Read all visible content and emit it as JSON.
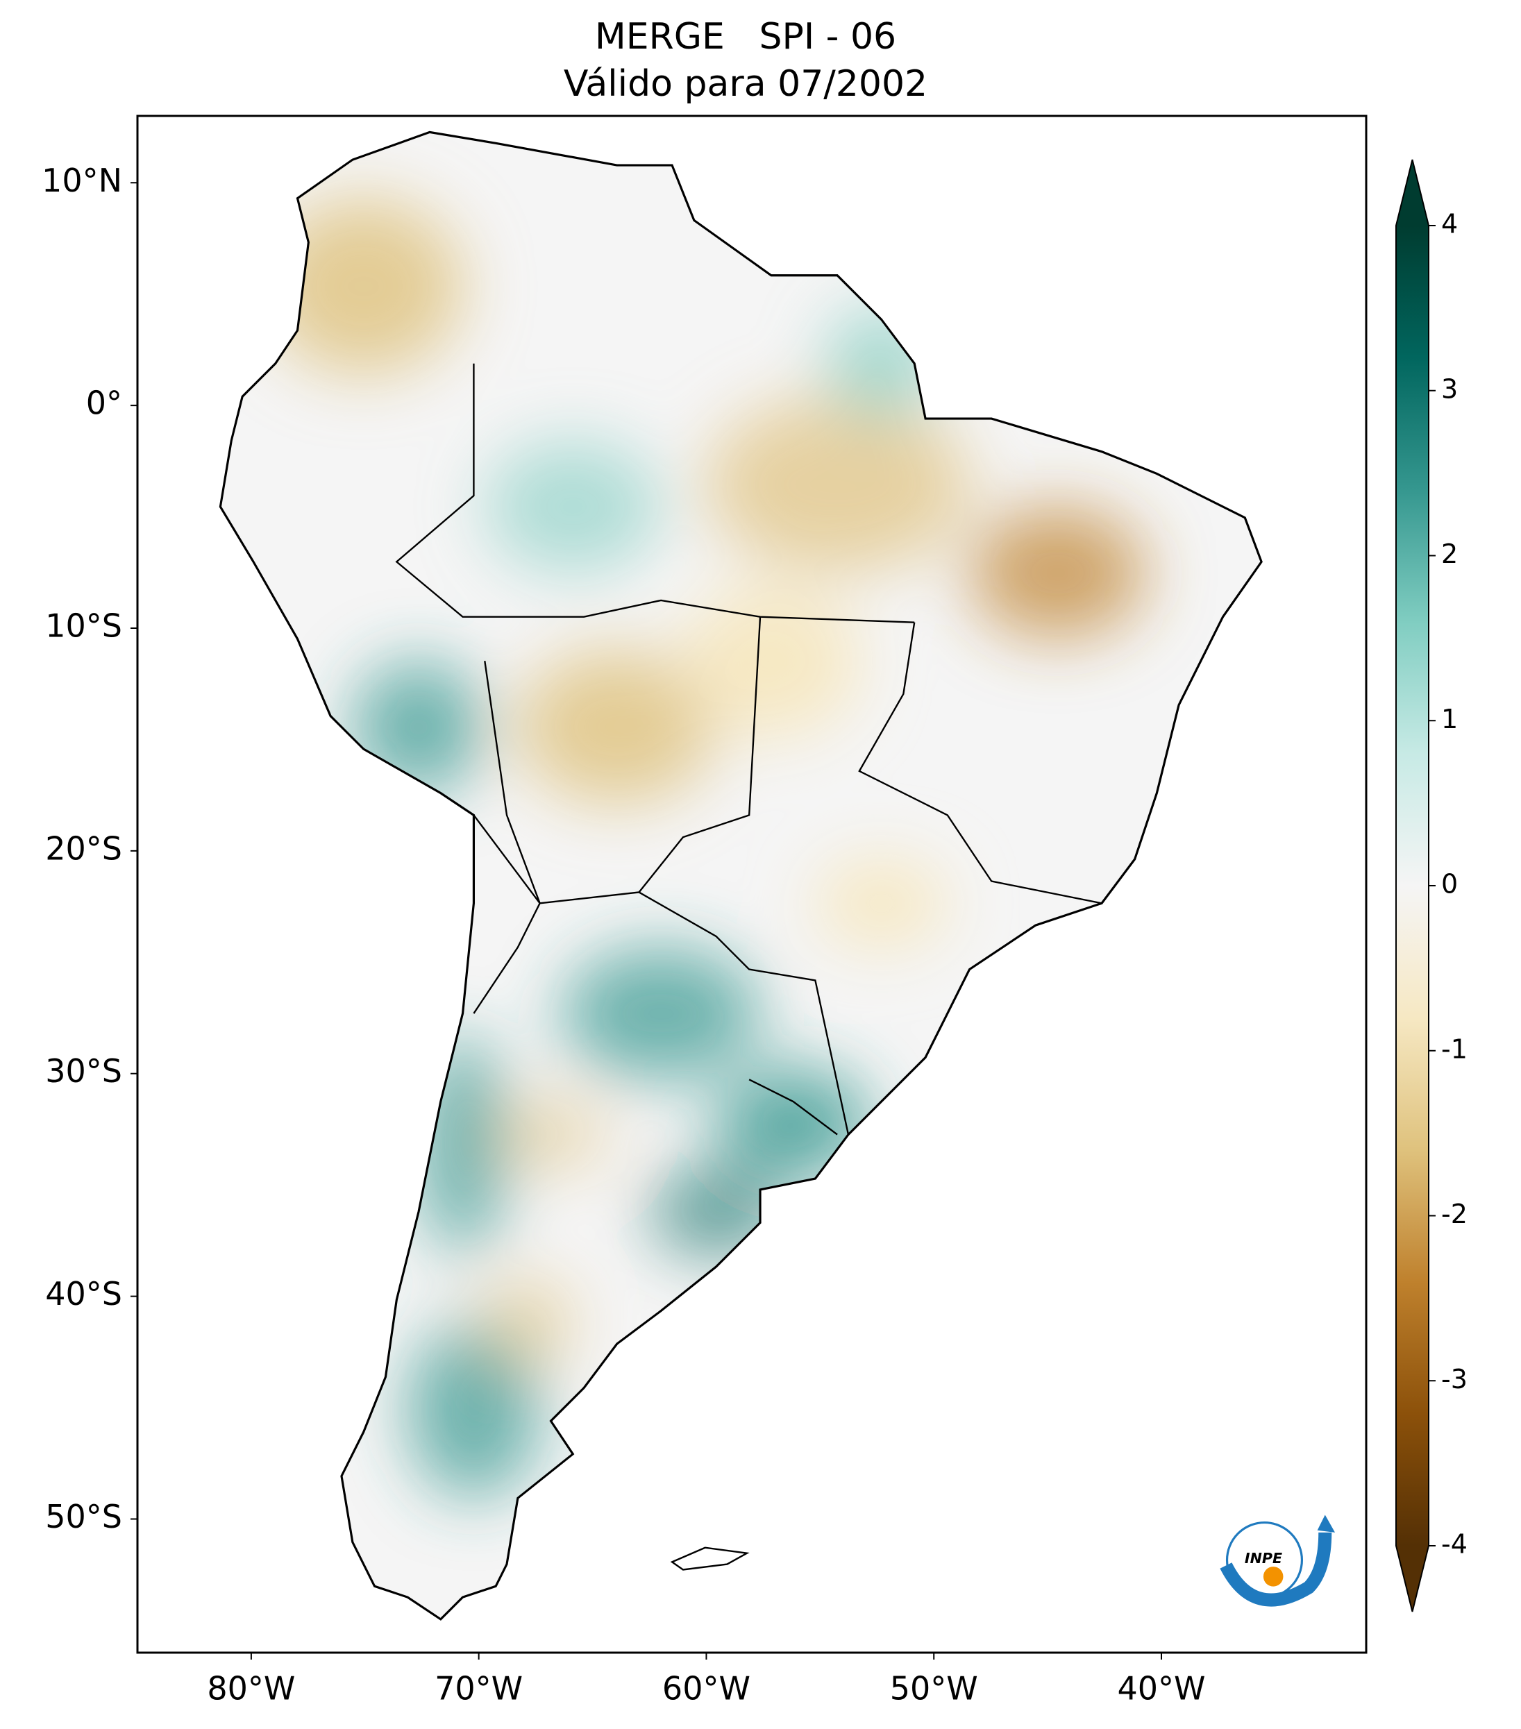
{
  "title": "MERGE   SPI - 06",
  "subtitle": "Válido para 07/2002",
  "map": {
    "lon_range": [
      -85,
      -31
    ],
    "lat_range": [
      -56,
      13
    ],
    "lon_ticks": [
      {
        "value": -80,
        "label": "80°W"
      },
      {
        "value": -70,
        "label": "70°W"
      },
      {
        "value": -60,
        "label": "60°W"
      },
      {
        "value": -50,
        "label": "50°W"
      },
      {
        "value": -40,
        "label": "40°W"
      }
    ],
    "lat_ticks": [
      {
        "value": 10,
        "label": "10°N"
      },
      {
        "value": 0,
        "label": "0°"
      },
      {
        "value": -10,
        "label": "10°S"
      },
      {
        "value": -20,
        "label": "20°S"
      },
      {
        "value": -30,
        "label": "30°S"
      },
      {
        "value": -40,
        "label": "40°S"
      },
      {
        "value": -50,
        "label": "50°S"
      }
    ]
  },
  "colorbar": {
    "range": [
      -4,
      4
    ],
    "ticks": [
      -4,
      -3,
      -2,
      -1,
      0,
      1,
      2,
      3,
      4
    ],
    "colormap": [
      "#543005",
      "#8c510a",
      "#bf812d",
      "#dfc27d",
      "#f6e8c3",
      "#f5f5f5",
      "#c7eae5",
      "#80cdc1",
      "#35978f",
      "#01665e",
      "#003c30"
    ]
  },
  "logo_text": "INPE"
}
